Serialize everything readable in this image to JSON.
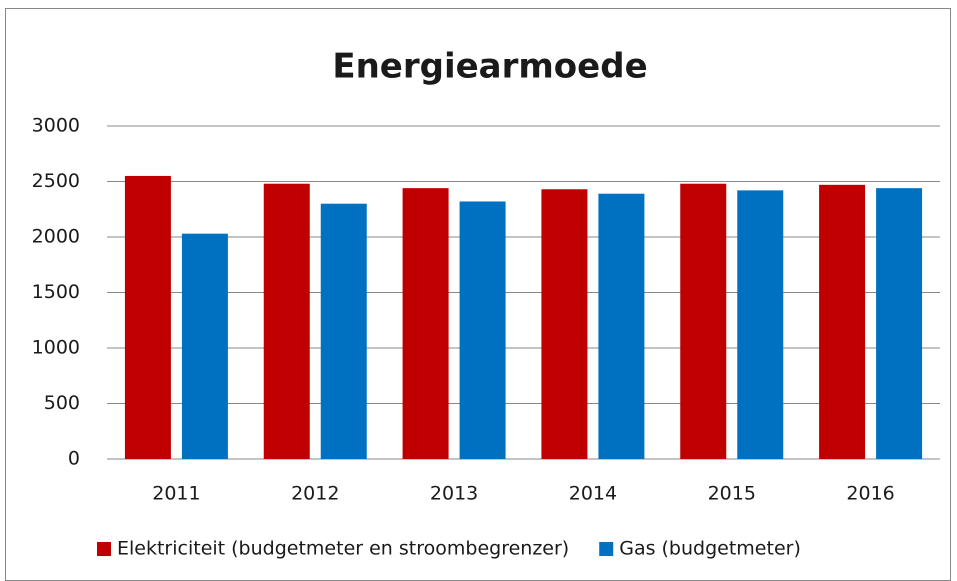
{
  "chart_data": {
    "type": "bar",
    "title": "Energiearmoede",
    "categories": [
      "2011",
      "2012",
      "2013",
      "2014",
      "2015",
      "2016"
    ],
    "series": [
      {
        "name": "Elektriciteit (budgetmeter en stroombegrenzer)",
        "color": "#c00000",
        "values": [
          2550,
          2480,
          2440,
          2430,
          2480,
          2470
        ]
      },
      {
        "name": "Gas (budgetmeter)",
        "color": "#0070c0",
        "values": [
          2030,
          2300,
          2320,
          2390,
          2420,
          2440
        ]
      }
    ],
    "ylim": [
      0,
      3000
    ],
    "yticks": [
      0,
      500,
      1000,
      1500,
      2000,
      2500,
      3000
    ],
    "grid": true,
    "legend": "bottom"
  }
}
